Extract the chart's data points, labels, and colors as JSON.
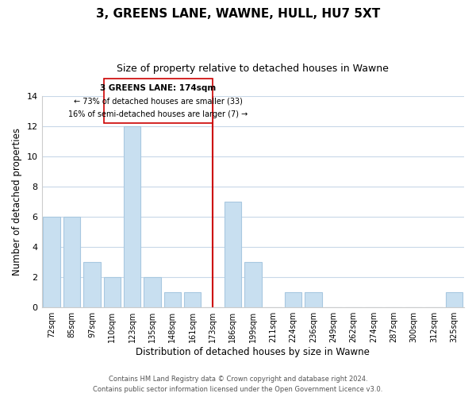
{
  "title": "3, GREENS LANE, WAWNE, HULL, HU7 5XT",
  "subtitle": "Size of property relative to detached houses in Wawne",
  "xlabel": "Distribution of detached houses by size in Wawne",
  "ylabel": "Number of detached properties",
  "bar_labels": [
    "72sqm",
    "85sqm",
    "97sqm",
    "110sqm",
    "123sqm",
    "135sqm",
    "148sqm",
    "161sqm",
    "173sqm",
    "186sqm",
    "199sqm",
    "211sqm",
    "224sqm",
    "236sqm",
    "249sqm",
    "262sqm",
    "274sqm",
    "287sqm",
    "300sqm",
    "312sqm",
    "325sqm"
  ],
  "bar_values": [
    6,
    6,
    3,
    2,
    12,
    2,
    1,
    1,
    0,
    7,
    3,
    0,
    1,
    1,
    0,
    0,
    0,
    0,
    0,
    0,
    1
  ],
  "bar_color": "#c8dff0",
  "bar_edgecolor": "#a8c8e0",
  "reference_line_x_label": "173sqm",
  "reference_line_color": "#cc0000",
  "ylim": [
    0,
    14
  ],
  "yticks": [
    0,
    2,
    4,
    6,
    8,
    10,
    12,
    14
  ],
  "annotation_title": "3 GREENS LANE: 174sqm",
  "annotation_line1": "← 73% of detached houses are smaller (33)",
  "annotation_line2": "16% of semi-detached houses are larger (7) →",
  "annotation_box_edgecolor": "#cc0000",
  "annotation_box_facecolor": "#ffffff",
  "footer_line1": "Contains HM Land Registry data © Crown copyright and database right 2024.",
  "footer_line2": "Contains public sector information licensed under the Open Government Licence v3.0.",
  "background_color": "#ffffff",
  "grid_color": "#c8d8e8",
  "title_fontsize": 11,
  "subtitle_fontsize": 9
}
